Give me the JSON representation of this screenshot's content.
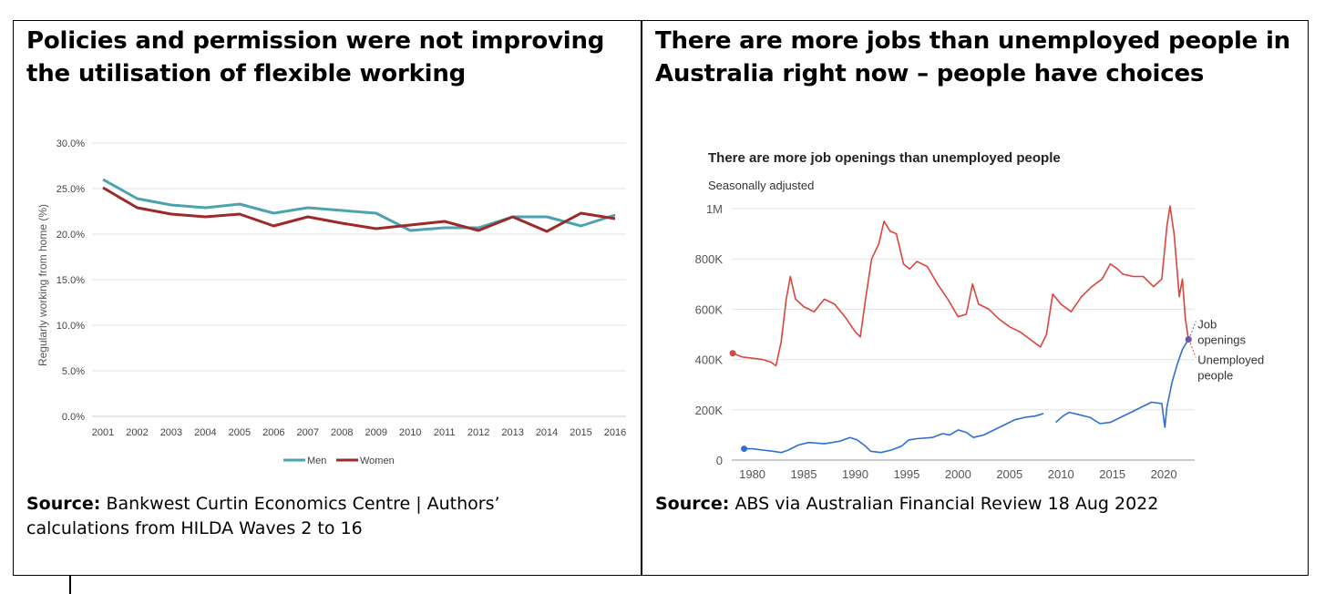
{
  "left_panel": {
    "title_line1": "Policies and permission were not improving",
    "title_line2": "the utilisation of flexible working",
    "source_label": "Source:",
    "source_line1": "Bankwest Curtin Economics Centre | Authors’",
    "source_line2": "calculations from HILDA Waves 2 to 16"
  },
  "right_panel": {
    "title_line1": "There are more jobs than unemployed people in",
    "title_line2": "Australia right now – people have choices",
    "source_label": "Source:",
    "source_text": "ABS via Australian Financial Review 18 Aug 2022"
  },
  "colors": {
    "men": "#4aa3ae",
    "women": "#9c2a2a",
    "job_openings": "#2f6fd0",
    "unemployed": "#d9453d",
    "grid": "#e3e3e3"
  },
  "chart_data": [
    {
      "type": "line",
      "title": "",
      "ylabel": "Regularly working from home (%)",
      "xlabel": "",
      "x": [
        "2001",
        "2002",
        "2003",
        "2004",
        "2005",
        "2006",
        "2007",
        "2008",
        "2009",
        "2010",
        "2011",
        "2012",
        "2013",
        "2014",
        "2015",
        "2016"
      ],
      "yticks": [
        "0.0%",
        "5.0%",
        "10.0%",
        "15.0%",
        "20.0%",
        "25.0%",
        "30.0%"
      ],
      "ylim": [
        0,
        30
      ],
      "legend_position": "bottom",
      "grid": true,
      "series": [
        {
          "name": "Men",
          "values": [
            26.0,
            23.9,
            23.2,
            22.9,
            23.3,
            22.3,
            22.9,
            22.6,
            22.3,
            20.4,
            20.7,
            20.7,
            21.9,
            21.9,
            20.9,
            22.1
          ]
        },
        {
          "name": "Women",
          "values": [
            25.1,
            22.9,
            22.2,
            21.9,
            22.2,
            20.9,
            21.9,
            21.2,
            20.6,
            21.0,
            21.4,
            20.4,
            21.9,
            20.3,
            22.3,
            21.7
          ]
        }
      ]
    },
    {
      "type": "line",
      "title": "There are more job openings than unemployed people",
      "subtitle": "Seasonally adjusted",
      "xlabel": "",
      "ylabel": "",
      "xticks": [
        "1980",
        "1985",
        "1990",
        "1995",
        "2000",
        "2005",
        "2010",
        "2015",
        "2020"
      ],
      "yticks": [
        "0",
        "200K",
        "400K",
        "600K",
        "800K",
        "1M"
      ],
      "xlim": [
        1978,
        2023
      ],
      "ylim": [
        0,
        1000000
      ],
      "grid": true,
      "series": [
        {
          "name": "Unemployed people",
          "label_line1": "Unemployed",
          "label_line2": "people",
          "points": [
            [
              1978.1,
              425000
            ],
            [
              1979,
              410000
            ],
            [
              1980,
              405000
            ],
            [
              1981,
              400000
            ],
            [
              1981.8,
              390000
            ],
            [
              1982.3,
              375000
            ],
            [
              1982.8,
              470000
            ],
            [
              1983.3,
              640000
            ],
            [
              1983.7,
              730000
            ],
            [
              1984.2,
              640000
            ],
            [
              1985,
              610000
            ],
            [
              1986,
              590000
            ],
            [
              1987,
              640000
            ],
            [
              1988,
              620000
            ],
            [
              1989,
              570000
            ],
            [
              1990,
              510000
            ],
            [
              1990.5,
              490000
            ],
            [
              1991,
              640000
            ],
            [
              1991.6,
              800000
            ],
            [
              1992.3,
              860000
            ],
            [
              1992.8,
              950000
            ],
            [
              1993.4,
              910000
            ],
            [
              1994,
              900000
            ],
            [
              1994.7,
              780000
            ],
            [
              1995.3,
              760000
            ],
            [
              1996,
              790000
            ],
            [
              1997,
              770000
            ],
            [
              1998,
              700000
            ],
            [
              1999,
              640000
            ],
            [
              2000,
              570000
            ],
            [
              2000.8,
              580000
            ],
            [
              2001.4,
              700000
            ],
            [
              2002,
              620000
            ],
            [
              2003,
              600000
            ],
            [
              2004,
              560000
            ],
            [
              2005,
              530000
            ],
            [
              2006,
              510000
            ],
            [
              2007,
              480000
            ],
            [
              2008,
              450000
            ],
            [
              2008.6,
              500000
            ],
            [
              2009.2,
              660000
            ],
            [
              2010,
              620000
            ],
            [
              2011,
              590000
            ],
            [
              2012,
              650000
            ],
            [
              2013,
              690000
            ],
            [
              2014,
              720000
            ],
            [
              2014.8,
              780000
            ],
            [
              2015.5,
              760000
            ],
            [
              2016,
              740000
            ],
            [
              2017,
              730000
            ],
            [
              2018,
              730000
            ],
            [
              2019,
              690000
            ],
            [
              2019.8,
              720000
            ],
            [
              2020.3,
              930000
            ],
            [
              2020.6,
              1010000
            ],
            [
              2021,
              900000
            ],
            [
              2021.5,
              650000
            ],
            [
              2021.8,
              720000
            ],
            [
              2022.1,
              560000
            ],
            [
              2022.4,
              480000
            ]
          ]
        },
        {
          "name": "Job openings",
          "label_line1": "Job",
          "label_line2": "openings",
          "points": [
            [
              1979.2,
              45000
            ],
            [
              1980,
              45000
            ],
            [
              1981,
              40000
            ],
            [
              1982,
              35000
            ],
            [
              1982.8,
              30000
            ],
            [
              1983.5,
              40000
            ],
            [
              1984.5,
              60000
            ],
            [
              1985.5,
              70000
            ],
            [
              1987,
              65000
            ],
            [
              1988.5,
              75000
            ],
            [
              1989.5,
              90000
            ],
            [
              1990.2,
              80000
            ],
            [
              1991,
              55000
            ],
            [
              1991.5,
              35000
            ],
            [
              1992.5,
              30000
            ],
            [
              1993.5,
              40000
            ],
            [
              1994.5,
              55000
            ],
            [
              1995.2,
              80000
            ],
            [
              1996,
              85000
            ],
            [
              1997.5,
              90000
            ],
            [
              1998.5,
              105000
            ],
            [
              1999.2,
              100000
            ],
            [
              2000,
              120000
            ],
            [
              2000.8,
              110000
            ],
            [
              2001.5,
              90000
            ],
            [
              2002.5,
              100000
            ],
            [
              2003.5,
              120000
            ],
            [
              2004.5,
              140000
            ],
            [
              2005.5,
              160000
            ],
            [
              2006.5,
              170000
            ],
            [
              2007.5,
              175000
            ],
            [
              2008.3,
              185000
            ],
            null,
            [
              2009.5,
              150000
            ],
            [
              2010.2,
              175000
            ],
            [
              2010.8,
              190000
            ],
            [
              2011.8,
              180000
            ],
            [
              2012.8,
              170000
            ],
            [
              2013.8,
              145000
            ],
            [
              2014.8,
              150000
            ],
            [
              2015.8,
              170000
            ],
            [
              2016.8,
              190000
            ],
            [
              2017.8,
              210000
            ],
            [
              2018.8,
              230000
            ],
            [
              2019.8,
              225000
            ],
            [
              2020.1,
              130000
            ],
            [
              2020.3,
              210000
            ],
            [
              2020.8,
              310000
            ],
            [
              2021.3,
              380000
            ],
            [
              2021.8,
              440000
            ],
            [
              2022.4,
              480000
            ]
          ]
        }
      ]
    }
  ]
}
